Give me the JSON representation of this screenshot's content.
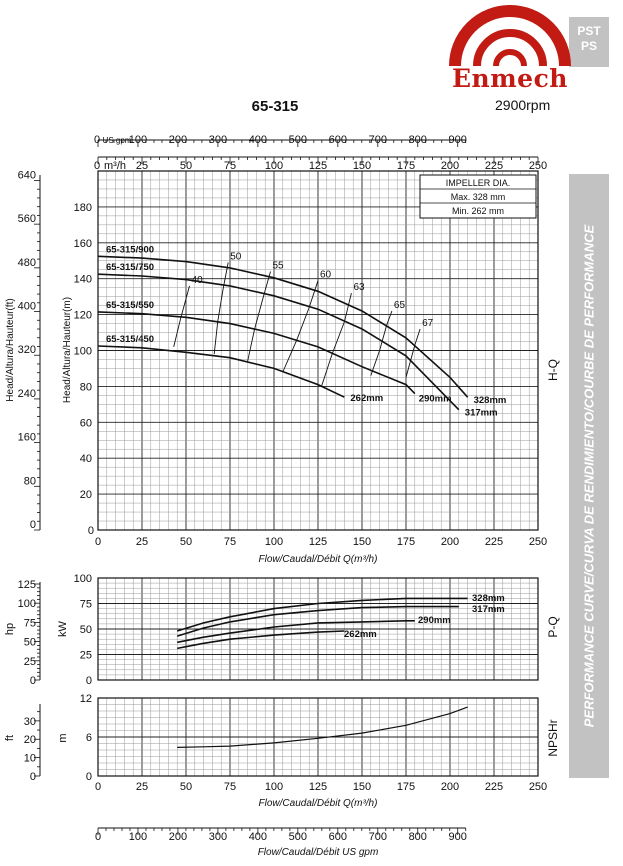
{
  "brand": {
    "name": "Enmech",
    "series_line1": "PST",
    "series_line2": "PS",
    "rpm": "2900rpm",
    "color": "#c11b14"
  },
  "model": "65-315",
  "sidebar_text": "PERFORMANCE CURVE/CURVA DE RENDIMIENTO/COURBE DE PERFORMANCE",
  "section_labels": {
    "hq": "H-Q",
    "pq": "P-Q",
    "npsh": "NPSHr"
  },
  "impeller": {
    "title": "IMPELLER DIA.",
    "max": "Max.  328 mm",
    "min": "Min.   262 mm"
  },
  "axes": {
    "flow_m3h_label": "m³/h",
    "flow_m3h_zero": "0",
    "flow_m3h_ticks": [
      "25",
      "50",
      "75",
      "100",
      "125",
      "150",
      "175",
      "200",
      "225",
      "250"
    ],
    "flow_m3h_bottom_ticks": [
      "0",
      "25",
      "50",
      "75",
      "100",
      "125",
      "150",
      "175",
      "200",
      "225",
      "250"
    ],
    "flow_usgpm_label": "US gpm",
    "flow_usgpm_zero": "0",
    "flow_usgpm_ticks": [
      "100",
      "200",
      "300",
      "400",
      "500",
      "600",
      "700",
      "800",
      "900"
    ],
    "flow_usgpm_bottom_ticks": [
      "0",
      "100",
      "200",
      "300",
      "400",
      "500",
      "600",
      "700",
      "800",
      "900"
    ],
    "flow_axis_title": "Flow/Caudal/Débit Q(m³/h)",
    "flow_usgpm_title": "Flow/Caudal/Débit  US gpm",
    "head_ft_label": "Head/Altura/Hauteur(ft)",
    "head_m_label": "Head/Altura/Hauteur(m)",
    "head_m_ticks": [
      "0",
      "20",
      "40",
      "60",
      "80",
      "100",
      "120",
      "140",
      "160",
      "180"
    ],
    "head_ft_ticks": [
      "0",
      "80",
      "160",
      "240",
      "320",
      "400",
      "480",
      "560",
      "640"
    ],
    "power_kw_label": "kW",
    "power_hp_label": "hp",
    "power_kw_ticks": [
      "0",
      "25",
      "50",
      "75",
      "100"
    ],
    "power_hp_ticks": [
      "0",
      "25",
      "50",
      "75",
      "100",
      "125"
    ],
    "npsh_m_label": "m",
    "npsh_ft_label": "ft",
    "npsh_m_ticks": [
      "0",
      "6",
      "12"
    ],
    "npsh_ft_ticks": [
      "0",
      "10",
      "20",
      "30"
    ]
  },
  "chart_data": [
    {
      "type": "line",
      "title": "H-Q",
      "xlabel": "Flow/Caudal/Débit Q(m³/h)",
      "ylabel": "Head/Altura/Hauteur(m)",
      "xlim": [
        0,
        250
      ],
      "ylim": [
        0,
        200
      ],
      "series": [
        {
          "name": "65-315/900",
          "label": "328mm",
          "x": [
            0,
            25,
            50,
            75,
            100,
            125,
            150,
            175,
            200,
            210
          ],
          "y": [
            152.5,
            151.5,
            149.5,
            146,
            140.5,
            133,
            122,
            107,
            85,
            74
          ]
        },
        {
          "name": "65-315/750",
          "label": "317mm",
          "x": [
            0,
            25,
            50,
            75,
            100,
            125,
            150,
            175,
            205
          ],
          "y": [
            142.5,
            141.5,
            139.5,
            136,
            130.5,
            123,
            112,
            97,
            67
          ]
        },
        {
          "name": "65-315/550",
          "label": "290mm",
          "x": [
            0,
            25,
            50,
            75,
            100,
            125,
            150,
            175,
            180
          ],
          "y": [
            121.5,
            120.5,
            118.5,
            115,
            109.5,
            102,
            91,
            81,
            76
          ]
        },
        {
          "name": "65-315/450",
          "label": "262mm",
          "x": [
            0,
            25,
            50,
            75,
            100,
            125,
            140
          ],
          "y": [
            102.5,
            101.5,
            99,
            96,
            90,
            81,
            74
          ]
        }
      ],
      "efficiency_contours": [
        {
          "label": "40",
          "x": [
            43,
            47,
            52
          ],
          "y": [
            102,
            118,
            136
          ]
        },
        {
          "label": "50",
          "x": [
            66,
            68,
            71,
            74
          ],
          "y": [
            98,
            116,
            134,
            149
          ]
        },
        {
          "label": "55",
          "x": [
            85,
            89,
            94,
            98
          ],
          "y": [
            94,
            112,
            130,
            144
          ]
        },
        {
          "label": "60",
          "x": [
            105,
            113,
            120,
            125
          ],
          "y": [
            88,
            106,
            124,
            139
          ]
        },
        {
          "label": "63",
          "x": [
            127,
            133,
            140,
            144
          ],
          "y": [
            80,
            98,
            116,
            132
          ]
        },
        {
          "label": "65",
          "x": [
            155,
            160,
            164,
            167
          ],
          "y": [
            86,
            100,
            114,
            122
          ]
        },
        {
          "label": "67",
          "x": [
            175,
            180,
            183
          ],
          "y": [
            85,
            103,
            112
          ]
        }
      ]
    },
    {
      "type": "line",
      "title": "P-Q",
      "xlabel": "Flow/Caudal/Débit Q(m³/h)",
      "ylabel": "kW",
      "xlim": [
        0,
        250
      ],
      "ylim": [
        0,
        100
      ],
      "series": [
        {
          "name": "328mm",
          "x": [
            45,
            60,
            75,
            100,
            125,
            150,
            175,
            200,
            210
          ],
          "y": [
            48,
            56,
            62,
            70,
            75,
            78,
            80,
            80,
            80
          ]
        },
        {
          "name": "317mm",
          "x": [
            45,
            60,
            75,
            100,
            125,
            150,
            175,
            200,
            205
          ],
          "y": [
            43,
            51,
            57,
            64,
            68,
            71,
            72,
            72,
            72
          ]
        },
        {
          "name": "290mm",
          "x": [
            45,
            60,
            75,
            100,
            125,
            150,
            175,
            180
          ],
          "y": [
            37,
            42,
            46,
            52,
            56,
            57,
            58,
            58
          ]
        },
        {
          "name": "262mm",
          "x": [
            45,
            60,
            75,
            100,
            125,
            140
          ],
          "y": [
            31,
            36,
            40,
            44,
            47,
            48
          ]
        }
      ]
    },
    {
      "type": "line",
      "title": "NPSHr",
      "xlabel": "Flow/Caudal/Débit Q(m³/h)",
      "ylabel": "m",
      "xlim": [
        0,
        250
      ],
      "ylim": [
        0,
        12
      ],
      "series": [
        {
          "name": "NPSHr",
          "x": [
            45,
            60,
            75,
            100,
            125,
            150,
            175,
            200,
            210
          ],
          "y": [
            4.4,
            4.5,
            4.6,
            5.1,
            5.8,
            6.6,
            7.8,
            9.6,
            10.6
          ]
        }
      ]
    }
  ]
}
